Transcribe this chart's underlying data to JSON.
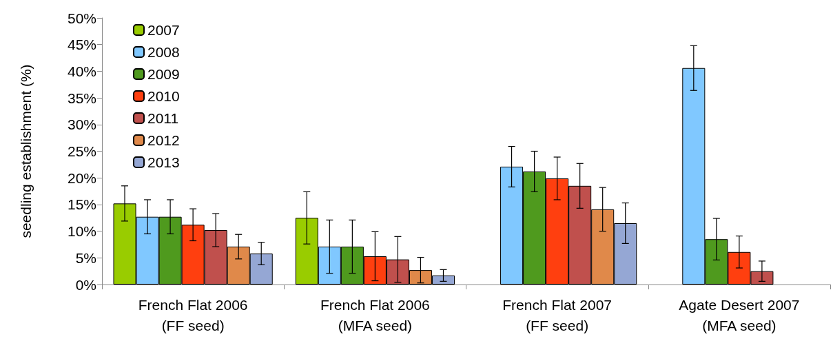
{
  "chart_data": {
    "type": "bar",
    "ylabel": "seedling establishment (%)",
    "categories": [
      "French Flat 2006\n(FF seed)",
      "French Flat 2006\n(MFA seed)",
      "French Flat 2007\n(FF seed)",
      "Agate Desert 2007\n(MFA seed)"
    ],
    "series": [
      {
        "name": "2007",
        "color": "#99cc00",
        "values": [
          15.2,
          12.5,
          null,
          null
        ],
        "errors": [
          3.3,
          4.9,
          null,
          null
        ]
      },
      {
        "name": "2008",
        "color": "#80c8ff",
        "values": [
          12.7,
          7.1,
          22.1,
          40.6
        ],
        "errors": [
          3.2,
          5.0,
          3.8,
          4.2
        ]
      },
      {
        "name": "2009",
        "color": "#4f9a1e",
        "values": [
          12.7,
          7.1,
          21.2,
          8.5
        ],
        "errors": [
          3.2,
          5.0,
          3.8,
          3.9
        ]
      },
      {
        "name": "2010",
        "color": "#ff3f0f",
        "values": [
          11.2,
          5.3,
          19.9,
          6.1
        ],
        "errors": [
          3.0,
          4.6,
          4.0,
          3.0
        ]
      },
      {
        "name": "2011",
        "color": "#c0504d",
        "values": [
          10.2,
          4.7,
          18.5,
          2.5
        ],
        "errors": [
          3.1,
          4.3,
          4.2,
          1.9
        ]
      },
      {
        "name": "2012",
        "color": "#e0894a",
        "values": [
          7.1,
          2.7,
          14.1,
          null
        ],
        "errors": [
          2.3,
          2.4,
          4.1,
          null
        ]
      },
      {
        "name": "2013",
        "color": "#95a7d4",
        "values": [
          5.8,
          1.7,
          11.5,
          null
        ],
        "errors": [
          2.1,
          1.1,
          3.8,
          null
        ]
      }
    ],
    "ylim": [
      0,
      50
    ],
    "yticks": [
      {
        "value": 0,
        "label": "0%"
      },
      {
        "value": 5,
        "label": "5%"
      },
      {
        "value": 10,
        "label": "10%"
      },
      {
        "value": 15,
        "label": "15%"
      },
      {
        "value": 20,
        "label": "20%"
      },
      {
        "value": 25,
        "label": "25%"
      },
      {
        "value": 30,
        "label": "30%"
      },
      {
        "value": 35,
        "label": "35%"
      },
      {
        "value": 40,
        "label": "40%"
      },
      {
        "value": 45,
        "label": "45%"
      },
      {
        "value": 50,
        "label": "50%"
      }
    ],
    "grid": false,
    "legend": "top left"
  }
}
